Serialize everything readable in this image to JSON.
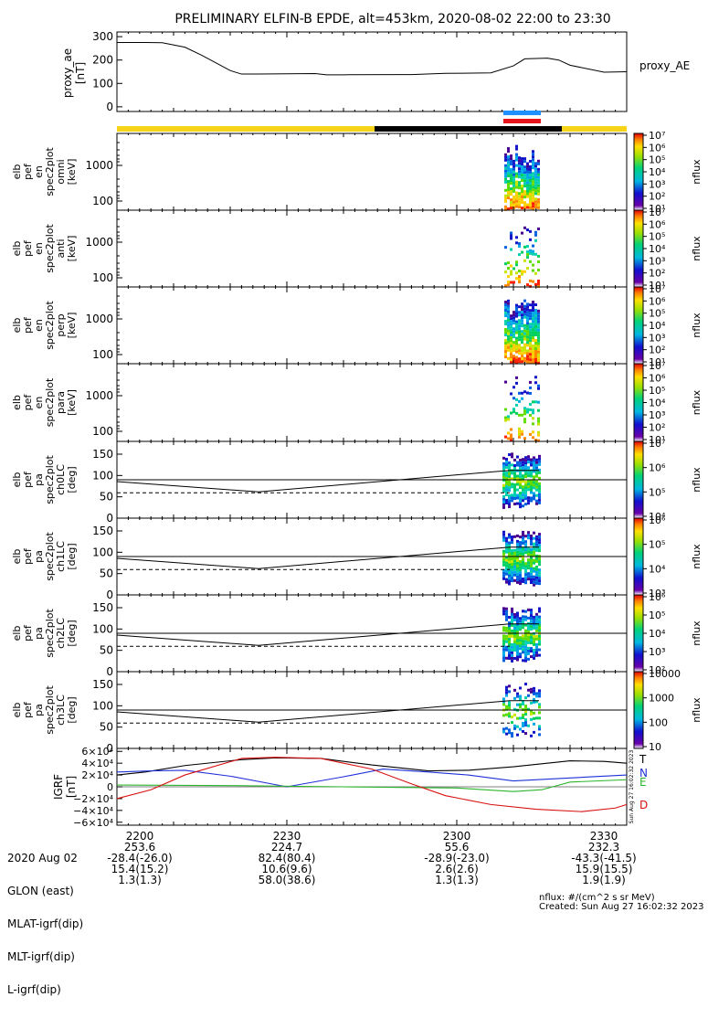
{
  "title": "PRELIMINARY ELFIN-B EPDE, alt=453km, 2020-08-02 22:00 to 23:30",
  "colors": {
    "state_yellow": "#f7d417",
    "state_black": "#000000",
    "bar_blue": "#1e90ff",
    "bar_red": "#e8141c"
  },
  "chart_data": [
    {
      "type": "line",
      "ylabel": [
        "proxy_ae",
        "[nT]"
      ],
      "yticks": [
        "300",
        "200",
        "100",
        "0"
      ],
      "ylim": [
        -20,
        320
      ],
      "legend": "proxy_AE",
      "series": [
        {
          "name": "proxy_AE",
          "x": [
            0,
            5,
            8,
            12,
            15,
            20,
            22,
            25,
            35,
            37,
            40,
            50,
            52,
            58,
            66,
            70,
            72,
            76,
            78,
            80,
            86,
            90
          ],
          "values": [
            275,
            275,
            274,
            255,
            220,
            155,
            140,
            140,
            142,
            137,
            137,
            138,
            138,
            143,
            145,
            175,
            205,
            208,
            200,
            178,
            148,
            150
          ]
        }
      ]
    },
    {
      "type": "heatmap",
      "ylabel": [
        "elb",
        "pef",
        "en",
        "spec2plot",
        "omni",
        "[keV]"
      ],
      "yticks": [
        "1000",
        "100"
      ],
      "colorbar": {
        "label": "nflux",
        "ticks": [
          "10⁷",
          "10⁶",
          "10⁵",
          "10⁴",
          "10³",
          "10²",
          "10¹"
        ]
      }
    },
    {
      "type": "heatmap",
      "ylabel": [
        "elb",
        "pef",
        "en",
        "spec2plot",
        "anti",
        "[keV]"
      ],
      "yticks": [
        "1000",
        "100"
      ],
      "colorbar": {
        "label": "nflux",
        "ticks": [
          "10⁷",
          "10⁶",
          "10⁵",
          "10⁴",
          "10³",
          "10²",
          "10¹"
        ]
      }
    },
    {
      "type": "heatmap",
      "ylabel": [
        "elb",
        "pef",
        "en",
        "spec2plot",
        "perp",
        "[keV]"
      ],
      "yticks": [
        "1000",
        "100"
      ],
      "colorbar": {
        "label": "nflux",
        "ticks": [
          "10⁷",
          "10⁶",
          "10⁵",
          "10⁴",
          "10³",
          "10²",
          "10¹"
        ]
      }
    },
    {
      "type": "heatmap",
      "ylabel": [
        "elb",
        "pef",
        "en",
        "spec2plot",
        "para",
        "[keV]"
      ],
      "yticks": [
        "1000",
        "100"
      ],
      "colorbar": {
        "label": "nflux",
        "ticks": [
          "10⁷",
          "10⁶",
          "10⁵",
          "10⁴",
          "10³",
          "10²",
          "10¹"
        ]
      }
    },
    {
      "type": "heatmap",
      "ylabel": [
        "elb",
        "pef",
        "pa",
        "spec2plot",
        "ch0LC",
        "[deg]"
      ],
      "yticks": [
        "150",
        "100",
        "50",
        "0"
      ],
      "colorbar": {
        "label": "nflux",
        "ticks": [
          "10⁷",
          "10⁶",
          "10⁵",
          "10⁴"
        ]
      }
    },
    {
      "type": "heatmap",
      "ylabel": [
        "elb",
        "pef",
        "pa",
        "spec2plot",
        "ch1LC",
        "[deg]"
      ],
      "yticks": [
        "150",
        "100",
        "50",
        "0"
      ],
      "colorbar": {
        "label": "nflux",
        "ticks": [
          "10⁶",
          "10⁵",
          "10⁴",
          "10³"
        ]
      }
    },
    {
      "type": "heatmap",
      "ylabel": [
        "elb",
        "pef",
        "pa",
        "spec2plot",
        "ch2LC",
        "[deg]"
      ],
      "yticks": [
        "150",
        "100",
        "50",
        "0"
      ],
      "colorbar": {
        "label": "nflux",
        "ticks": [
          "10⁶",
          "10⁵",
          "10⁴",
          "10³",
          "10²"
        ]
      }
    },
    {
      "type": "heatmap",
      "ylabel": [
        "elb",
        "pef",
        "pa",
        "spec2plot",
        "ch3LC",
        "[deg]"
      ],
      "yticks": [
        "150",
        "100",
        "50",
        "0"
      ],
      "colorbar": {
        "label": "nflux",
        "ticks": [
          "10000",
          "1000",
          "100",
          "10"
        ]
      }
    },
    {
      "type": "line",
      "ylabel": [
        "IGRF",
        "[nT]"
      ],
      "yticks": [
        "6×10⁴",
        "4×10⁴",
        "2×10⁴",
        "0",
        "−2×10⁴",
        "−4×10⁴",
        "−6×10⁴"
      ],
      "ylim": [
        -65000,
        65000
      ],
      "legend": [
        "T",
        "N",
        "E",
        "D"
      ],
      "series": [
        {
          "name": "T",
          "color": "#000000",
          "x": [
            0,
            5,
            12,
            22,
            28,
            36,
            45,
            55,
            62,
            70,
            80,
            86,
            90
          ],
          "values": [
            20000,
            25000,
            36000,
            46000,
            49000,
            48000,
            37000,
            27000,
            28000,
            34000,
            44000,
            43000,
            40000
          ]
        },
        {
          "name": "N",
          "color": "#1f2fd8",
          "x": [
            0,
            6,
            12,
            20,
            30,
            40,
            47,
            55,
            62,
            70,
            80,
            90
          ],
          "values": [
            25000,
            27000,
            28000,
            18000,
            0,
            17000,
            30000,
            25000,
            20000,
            10000,
            15000,
            20000
          ]
        },
        {
          "name": "E",
          "color": "#2bb52b",
          "x": [
            0,
            20,
            40,
            60,
            70,
            75,
            80,
            90
          ],
          "values": [
            3000,
            2000,
            0,
            -2000,
            -8000,
            -5000,
            8000,
            12000
          ]
        },
        {
          "name": "D",
          "color": "#d81010",
          "x": [
            0,
            6,
            12,
            22,
            28,
            36,
            45,
            52,
            58,
            66,
            74,
            82,
            88,
            90
          ],
          "values": [
            -20000,
            -5000,
            20000,
            48000,
            50000,
            48000,
            30000,
            5000,
            -15000,
            -30000,
            -38000,
            -42000,
            -36000,
            -30000
          ]
        }
      ]
    }
  ],
  "footer": {
    "rows": [
      {
        "label": "2020 Aug 02",
        "values": [
          "2200",
          "2230",
          "2300",
          "2330"
        ]
      },
      {
        "label": "GLON (east)",
        "values": [
          "253.6",
          "224.7",
          "55.6",
          "232.3"
        ]
      },
      {
        "label": "MLAT-igrf(dip)",
        "values": [
          "-28.4(-26.0)",
          "82.4(80.4)",
          "-28.9(-23.0)",
          "-43.3(-41.5)"
        ]
      },
      {
        "label": "MLT-igrf(dip)",
        "values": [
          "15.4(15.2)",
          "10.6(9.6)",
          "2.6(2.6)",
          "15.9(15.5)"
        ]
      },
      {
        "label": "L-igrf(dip)",
        "values": [
          "1.3(1.3)",
          "58.0(38.6)",
          "1.3(1.3)",
          "1.9(1.9)"
        ]
      }
    ],
    "units": "nflux: #/(cm^2 s sr MeV)",
    "created": "Created: Sun Aug 27 16:02:32 2023",
    "side_stamp": "Sun Aug 27 16:02:32 2023"
  }
}
